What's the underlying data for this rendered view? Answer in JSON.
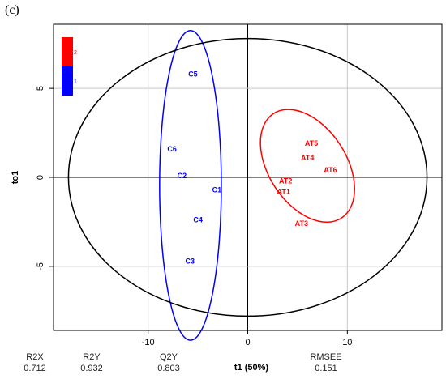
{
  "panel_label": "(c)",
  "chart_data": {
    "type": "scatter",
    "xlabel": "t1 (50%)",
    "ylabel": "to1",
    "xlim": [
      -19.5,
      19.5
    ],
    "ylim": [
      -8.6,
      8.6
    ],
    "xticks": [
      -10,
      0,
      10
    ],
    "yticks": [
      -5,
      0,
      5
    ],
    "ytick_labels": [
      "-5",
      "0",
      "5"
    ],
    "xtick_labels": [
      "-10",
      "0",
      "10"
    ],
    "grid": true,
    "legend": {
      "position": "top-left",
      "entries": [
        {
          "name": "2",
          "color": "#ff0000"
        },
        {
          "name": "1",
          "color": "#0000ff"
        }
      ]
    },
    "series": [
      {
        "name": "1",
        "color": "#0000ff",
        "points": [
          {
            "label": "C5",
            "x": -5.5,
            "y": 5.8
          },
          {
            "label": "C6",
            "x": -7.6,
            "y": 1.6
          },
          {
            "label": "C2",
            "x": -6.6,
            "y": 0.1
          },
          {
            "label": "C1",
            "x": -3.1,
            "y": -0.7
          },
          {
            "label": "C4",
            "x": -5.0,
            "y": -2.4
          },
          {
            "label": "C3",
            "x": -5.8,
            "y": -4.7
          }
        ]
      },
      {
        "name": "2",
        "color": "#ff0000",
        "points": [
          {
            "label": "AT5",
            "x": 6.4,
            "y": 1.9
          },
          {
            "label": "AT4",
            "x": 6.0,
            "y": 1.1
          },
          {
            "label": "AT6",
            "x": 8.3,
            "y": 0.4
          },
          {
            "label": "AT2",
            "x": 3.8,
            "y": -0.2
          },
          {
            "label": "AT1",
            "x": 3.6,
            "y": -0.8
          },
          {
            "label": "AT3",
            "x": 5.4,
            "y": -2.6
          }
        ]
      }
    ],
    "ellipses": [
      {
        "group": "1",
        "color": "#0000ff",
        "cx": -5.75,
        "cy": -0.45,
        "rx": 3.1,
        "ry": 8.7
      },
      {
        "group": "2",
        "color": "#ff0000",
        "cx": 6.0,
        "cy": 0.65,
        "rx": 3.9,
        "ry": 3.5,
        "angle": 33
      },
      {
        "group": "all",
        "color": "#000000",
        "cx": 0,
        "cy": 0,
        "rx": 18.0,
        "ry": 7.8
      }
    ]
  },
  "stats": [
    {
      "label": "R2X",
      "value": "0.712"
    },
    {
      "label": "R2Y",
      "value": "0.932"
    },
    {
      "label": "Q2Y",
      "value": "0.803"
    },
    {
      "label": "t1 (50%)",
      "value": ""
    },
    {
      "label": "RMSEE",
      "value": "0.151"
    }
  ]
}
